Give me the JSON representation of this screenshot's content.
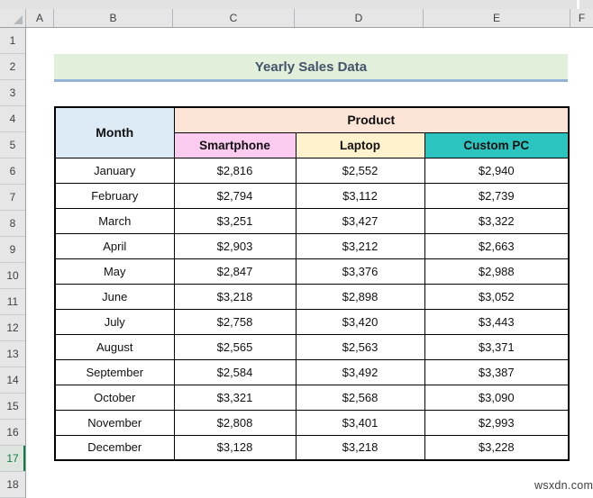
{
  "window": {
    "watermark": "wsxdn.com"
  },
  "spreadsheet": {
    "column_headers": [
      "A",
      "B",
      "C",
      "D",
      "E",
      "F"
    ],
    "row_headers": [
      "1",
      "2",
      "3",
      "4",
      "5",
      "6",
      "7",
      "8",
      "9",
      "10",
      "11",
      "12",
      "13",
      "14",
      "15",
      "16",
      "17",
      "18"
    ],
    "active_row": "17"
  },
  "sheet": {
    "title": "Yearly Sales Data",
    "table": {
      "month_header": "Month",
      "product_header": "Product",
      "product_columns": [
        "Smartphone",
        "Laptop",
        "Custom PC"
      ],
      "rows": [
        {
          "month": "January",
          "smartphone": "$2,816",
          "laptop": "$2,552",
          "custom_pc": "$2,940"
        },
        {
          "month": "February",
          "smartphone": "$2,794",
          "laptop": "$3,112",
          "custom_pc": "$2,739"
        },
        {
          "month": "March",
          "smartphone": "$3,251",
          "laptop": "$3,427",
          "custom_pc": "$3,322"
        },
        {
          "month": "April",
          "smartphone": "$2,903",
          "laptop": "$3,212",
          "custom_pc": "$2,663"
        },
        {
          "month": "May",
          "smartphone": "$2,847",
          "laptop": "$3,376",
          "custom_pc": "$2,988"
        },
        {
          "month": "June",
          "smartphone": "$3,218",
          "laptop": "$2,898",
          "custom_pc": "$3,052"
        },
        {
          "month": "July",
          "smartphone": "$2,758",
          "laptop": "$3,420",
          "custom_pc": "$3,443"
        },
        {
          "month": "August",
          "smartphone": "$2,565",
          "laptop": "$2,563",
          "custom_pc": "$3,371"
        },
        {
          "month": "September",
          "smartphone": "$2,584",
          "laptop": "$3,492",
          "custom_pc": "$3,387"
        },
        {
          "month": "October",
          "smartphone": "$3,321",
          "laptop": "$2,568",
          "custom_pc": "$3,090"
        },
        {
          "month": "November",
          "smartphone": "$2,808",
          "laptop": "$3,401",
          "custom_pc": "$2,993"
        },
        {
          "month": "December",
          "smartphone": "$3,128",
          "laptop": "$3,218",
          "custom_pc": "$3,228"
        }
      ]
    }
  },
  "colors": {
    "title_bg": "#E2EFDA",
    "title_text": "#44546A",
    "title_border": "#95B3D7",
    "month_bg": "#DDEBF7",
    "product_bg": "#FCE4D6",
    "smartphone_bg": "#FBCBF0",
    "laptop_bg": "#FFF2CC",
    "custom_pc_bg": "#2BC4BE",
    "active_row_green": "#107C41",
    "active_row_bg": "#DEE5DF"
  }
}
